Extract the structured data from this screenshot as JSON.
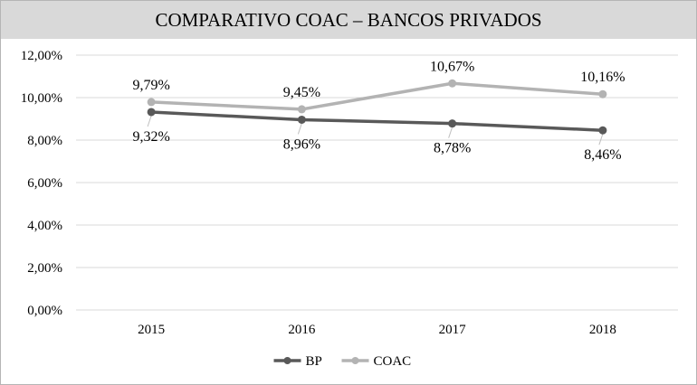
{
  "chart_data": {
    "type": "line",
    "title": "COMPARATIVO COAC – BANCOS PRIVADOS",
    "categories": [
      "2015",
      "2016",
      "2017",
      "2018"
    ],
    "series": [
      {
        "name": "BP",
        "values": [
          9.32,
          8.96,
          8.78,
          8.46
        ],
        "labels": [
          "9,32%",
          "8,96%",
          "8,78%",
          "8,46%"
        ],
        "color": "#595959"
      },
      {
        "name": "COAC",
        "values": [
          9.79,
          9.45,
          10.67,
          10.16
        ],
        "labels": [
          "9,79%",
          "9,45%",
          "10,67%",
          "10,16%"
        ],
        "color": "#b3b3b3"
      }
    ],
    "ylim": [
      0,
      12
    ],
    "yticks": [
      "0,00%",
      "2,00%",
      "4,00%",
      "6,00%",
      "8,00%",
      "10,00%",
      "12,00%"
    ],
    "grid": true,
    "legend": "bottom"
  }
}
